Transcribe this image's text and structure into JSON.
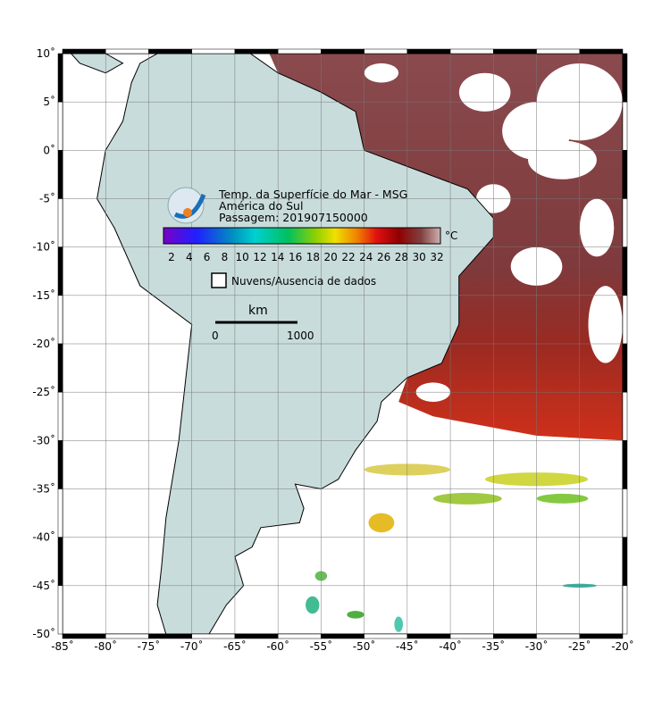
{
  "header": {
    "lines": [
      "Temp. da Superfície do Mar - MSG",
      "América do Sul",
      "Passagem: 201907150000"
    ]
  },
  "colorbar": {
    "labels": [
      2,
      4,
      6,
      8,
      10,
      12,
      14,
      16,
      18,
      20,
      22,
      24,
      26,
      28,
      30,
      32
    ],
    "unit": "°C"
  },
  "legend": {
    "label": "Nuvens/Ausencia de dados"
  },
  "scale_bar": {
    "unit": "km",
    "start": "0",
    "end": "1000"
  },
  "lat_labels": [
    "10˚",
    "5˚",
    "0˚",
    "-5˚",
    "-10˚",
    "-15˚",
    "-20˚",
    "-25˚",
    "-30˚",
    "-35˚",
    "-40˚",
    "-45˚",
    "-50˚"
  ],
  "lon_labels": [
    "-85˚",
    "-80˚",
    "-75˚",
    "-70˚",
    "-65˚",
    "-60˚",
    "-55˚",
    "-50˚",
    "-45˚",
    "-40˚",
    "-35˚",
    "-30˚",
    "-25˚",
    "-20˚"
  ]
}
